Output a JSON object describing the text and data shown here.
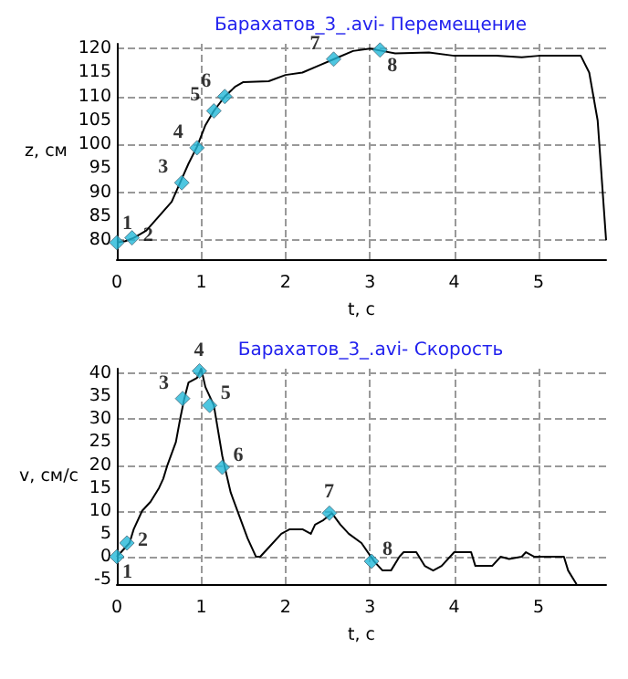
{
  "chart_data": [
    {
      "type": "line",
      "title": "Барахатов_3_.avi- Перемещение",
      "xlabel": "t, c",
      "ylabel": "z, см",
      "xlim": [
        0,
        5.8
      ],
      "xticks": [
        0,
        1,
        2,
        3,
        4,
        5
      ],
      "ylim": [
        76,
        121
      ],
      "yticks": [
        80,
        85,
        90,
        95,
        100,
        105,
        110,
        115,
        120
      ],
      "grid": true,
      "series": [
        {
          "color": "#000000",
          "marker": "none",
          "x": [
            0,
            0.1,
            0.2,
            0.35,
            0.5,
            0.65,
            0.75,
            0.85,
            0.95,
            1.05,
            1.15,
            1.28,
            1.4,
            1.5,
            1.8,
            2.0,
            2.2,
            2.4,
            2.6,
            2.8,
            3.0,
            3.15,
            3.3,
            3.7,
            4.0,
            4.5,
            4.8,
            5.0,
            5.5,
            5.6,
            5.7,
            5.8
          ],
          "values": [
            79.5,
            79.8,
            80.5,
            82,
            85,
            88,
            92,
            96,
            99.5,
            104,
            107,
            110,
            112,
            113,
            113.2,
            114.5,
            115,
            116.5,
            118,
            119.5,
            120,
            119.5,
            119,
            119.2,
            118.5,
            118.5,
            118.2,
            118.5,
            118.5,
            115,
            105,
            80
          ]
        },
        {
          "type": "scatter",
          "color": "#22b8d8",
          "marker": "diamond",
          "x": [
            0,
            0.18,
            0.77,
            0.95,
            1.15,
            1.28,
            2.57,
            3.12
          ],
          "values": [
            79.5,
            80.5,
            92,
            99.3,
            107,
            110,
            117.8,
            119.7
          ]
        }
      ],
      "annotations": [
        {
          "text": "1",
          "x": 0,
          "y": 79.5
        },
        {
          "text": "2",
          "x": 0.18,
          "y": 80.5
        },
        {
          "text": "3",
          "x": 0.77,
          "y": 92
        },
        {
          "text": "4",
          "x": 0.95,
          "y": 99.3
        },
        {
          "text": "5",
          "x": 1.15,
          "y": 107
        },
        {
          "text": "6",
          "x": 1.28,
          "y": 110
        },
        {
          "text": "7",
          "x": 2.57,
          "y": 117.8
        },
        {
          "text": "8",
          "x": 3.12,
          "y": 119.7
        }
      ]
    },
    {
      "type": "line",
      "title": "Барахатов_3_.avi- Скорость",
      "xlabel": "t, c",
      "ylabel": "v, см/с",
      "xlim": [
        0,
        5.8
      ],
      "xticks": [
        0,
        1,
        2,
        3,
        4,
        5
      ],
      "ylim": [
        -6,
        41
      ],
      "yticks": [
        -5,
        0,
        5,
        10,
        15,
        20,
        25,
        30,
        35,
        40
      ],
      "grid": true,
      "series": [
        {
          "color": "#000000",
          "marker": "none",
          "x": [
            0,
            0.1,
            0.15,
            0.2,
            0.3,
            0.4,
            0.5,
            0.55,
            0.6,
            0.7,
            0.75,
            0.8,
            0.85,
            0.95,
            1.0,
            1.05,
            1.15,
            1.25,
            1.28,
            1.35,
            1.45,
            1.55,
            1.65,
            1.7,
            1.8,
            1.95,
            2.05,
            2.2,
            2.3,
            2.35,
            2.45,
            2.55,
            2.65,
            2.75,
            2.9,
            3.05,
            3.15,
            3.25,
            3.35,
            3.4,
            3.55,
            3.65,
            3.75,
            3.85,
            4.0,
            4.2,
            4.25,
            4.45,
            4.55,
            4.65,
            4.8,
            4.85,
            4.95,
            5.3,
            5.35,
            5.45
          ],
          "values": [
            0,
            2,
            3,
            6,
            10,
            12,
            15,
            17,
            20,
            25,
            30,
            34.5,
            38,
            39,
            41,
            37,
            33,
            22,
            19.5,
            14,
            9,
            4,
            0,
            0,
            2,
            5,
            6,
            6,
            5,
            7,
            8,
            9.5,
            7,
            5,
            3,
            -1,
            -3,
            -3,
            0,
            1,
            1,
            -2,
            -3,
            -2,
            1,
            1,
            -2,
            -2,
            0,
            -0.5,
            0,
            1,
            0,
            0,
            -3,
            -6
          ]
        },
        {
          "type": "scatter",
          "color": "#22b8d8",
          "marker": "diamond",
          "x": [
            0,
            0.12,
            0.78,
            0.98,
            1.1,
            1.25,
            2.52,
            3.02
          ],
          "values": [
            0,
            3,
            34.5,
            40.5,
            33,
            19.5,
            9.5,
            -1
          ]
        }
      ],
      "annotations": [
        {
          "text": "1",
          "x": 0,
          "y": 0
        },
        {
          "text": "2",
          "x": 0.12,
          "y": 3
        },
        {
          "text": "3",
          "x": 0.78,
          "y": 34.5
        },
        {
          "text": "4",
          "x": 0.98,
          "y": 40.5
        },
        {
          "text": "5",
          "x": 1.1,
          "y": 33
        },
        {
          "text": "6",
          "x": 1.25,
          "y": 19.5
        },
        {
          "text": "7",
          "x": 2.52,
          "y": 9.5
        },
        {
          "text": "8",
          "x": 3.02,
          "y": -1
        }
      ]
    }
  ]
}
